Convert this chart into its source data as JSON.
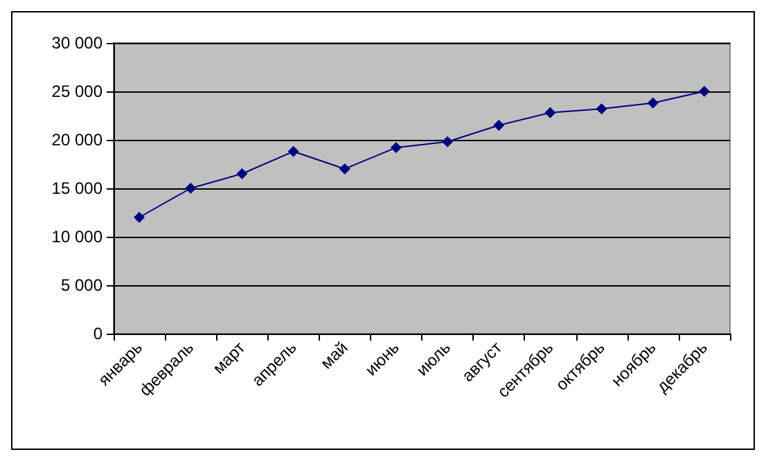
{
  "chart_data": {
    "type": "line",
    "categories": [
      "январь",
      "февраль",
      "март",
      "апрель",
      "май",
      "июнь",
      "июль",
      "август",
      "сентябрь",
      "октябрь",
      "ноябрь",
      "декабрь"
    ],
    "series": [
      {
        "color": "#000080",
        "values": [
          12000,
          15000,
          16500,
          18800,
          17000,
          19200,
          19800,
          21500,
          22800,
          23200,
          23800,
          25000
        ]
      }
    ],
    "ylim": [
      0,
      30000
    ],
    "yticks": [
      {
        "value": 0,
        "label": "0"
      },
      {
        "value": 5000,
        "label": "5 000"
      },
      {
        "value": 10000,
        "label": "10 000"
      },
      {
        "value": 15000,
        "label": "15 000"
      },
      {
        "value": 20000,
        "label": "20 000"
      },
      {
        "value": 25000,
        "label": "25 000"
      },
      {
        "value": 30000,
        "label": "30 000"
      }
    ],
    "grid": "y",
    "marker": "diamond",
    "line_style": "solid"
  }
}
